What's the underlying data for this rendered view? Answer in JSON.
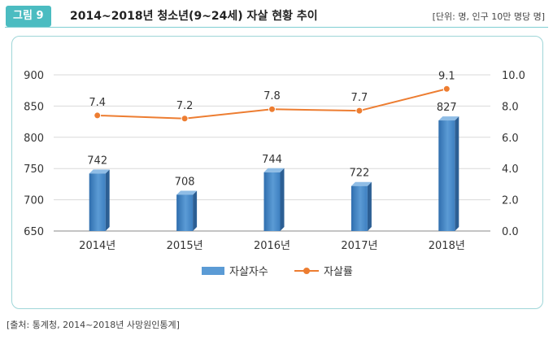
{
  "header": {
    "figure_label": "그림 9",
    "title": "2014~2018년 청소년(9~24세) 자살 현황 추이",
    "unit_note": "[단위: 명, 인구 10만 명당 명]"
  },
  "footer": {
    "source": "[출처: 통계청, 2014~2018년 사망원인통계]"
  },
  "chart_data": {
    "type": "bar+line",
    "categories": [
      "2014년",
      "2015년",
      "2016년",
      "2017년",
      "2018년"
    ],
    "series": [
      {
        "name": "자살자수",
        "type": "bar",
        "axis": "left",
        "values": [
          742,
          708,
          744,
          722,
          827
        ],
        "labels": [
          "742",
          "708",
          "744",
          "722",
          "827"
        ],
        "color": "#5b9bd5"
      },
      {
        "name": "자살률",
        "type": "line",
        "axis": "right",
        "values": [
          7.4,
          7.2,
          7.8,
          7.7,
          9.1
        ],
        "labels": [
          "7.4",
          "7.2",
          "7.8",
          "7.7",
          "9.1"
        ],
        "color": "#ed7d31"
      }
    ],
    "y_left": {
      "min": 650,
      "max": 900,
      "ticks": [
        650,
        700,
        750,
        800,
        850,
        900
      ],
      "tick_labels": [
        "650",
        "700",
        "750",
        "800",
        "850",
        "900"
      ]
    },
    "y_right": {
      "min": 0,
      "max": 10,
      "ticks": [
        0,
        2,
        4,
        6,
        8,
        10
      ],
      "tick_labels": [
        "0.0",
        "2.0",
        "4.0",
        "6.0",
        "8.0",
        "10.0"
      ]
    },
    "grid": true,
    "legend_position": "bottom"
  }
}
